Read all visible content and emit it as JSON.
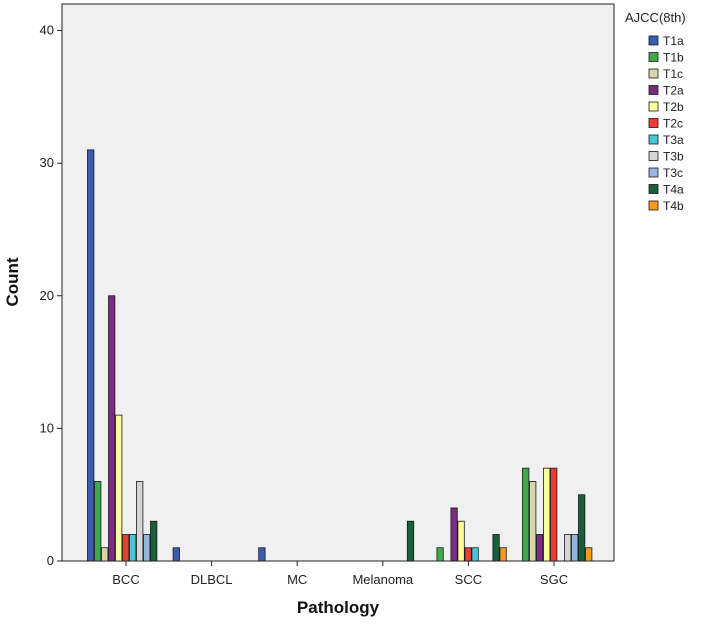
{
  "chart_data": {
    "type": "bar",
    "xlabel": "Pathology",
    "ylabel": "Count",
    "ylim": [
      0,
      42
    ],
    "yticks": [
      0,
      10,
      20,
      30,
      40
    ],
    "grid": false,
    "legend": {
      "title": "AJCC(8th)",
      "placement": "right"
    },
    "categories": [
      "BCC",
      "DLBCL",
      "MC",
      "Melanoma",
      "SCC",
      "SGC"
    ],
    "series": [
      {
        "name": "T1a",
        "color": "#3B5BB5",
        "values": [
          31,
          1,
          1,
          0,
          0,
          0
        ]
      },
      {
        "name": "T1b",
        "color": "#3DAA48",
        "values": [
          6,
          0,
          0,
          0,
          1,
          7
        ]
      },
      {
        "name": "T1c",
        "color": "#D9D6A6",
        "values": [
          1,
          0,
          0,
          0,
          0,
          6
        ]
      },
      {
        "name": "T2a",
        "color": "#7B2C83",
        "values": [
          20,
          0,
          0,
          0,
          4,
          2
        ]
      },
      {
        "name": "T2b",
        "color": "#FFFF99",
        "values": [
          11,
          0,
          0,
          0,
          3,
          7
        ]
      },
      {
        "name": "T2c",
        "color": "#EE3B33",
        "values": [
          2,
          0,
          0,
          0,
          1,
          7
        ]
      },
      {
        "name": "T3a",
        "color": "#45C7D6",
        "values": [
          2,
          0,
          0,
          0,
          1,
          0
        ]
      },
      {
        "name": "T3b",
        "color": "#D6D6D6",
        "values": [
          6,
          0,
          0,
          0,
          0,
          2
        ]
      },
      {
        "name": "T3c",
        "color": "#95B4DE",
        "values": [
          2,
          0,
          0,
          0,
          0,
          2
        ]
      },
      {
        "name": "T4a",
        "color": "#17603A",
        "values": [
          3,
          0,
          0,
          3,
          2,
          5
        ]
      },
      {
        "name": "T4b",
        "color": "#F59A1F",
        "values": [
          0,
          0,
          0,
          0,
          1,
          1
        ]
      }
    ]
  }
}
